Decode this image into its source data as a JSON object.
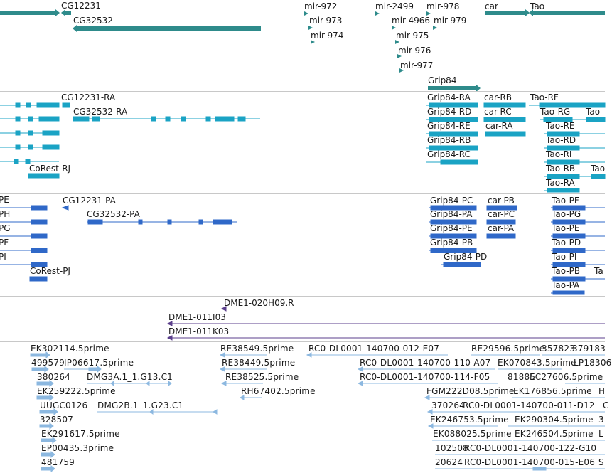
{
  "colors": {
    "gene": "#2e8b8b",
    "transcript": "#1aa3c4",
    "protein": "#2f68c8",
    "cdna": "#5b3f8c",
    "est": "#8cb8e0",
    "divider": "#c8c8c8"
  },
  "tracks": [
    {
      "id": "genes",
      "features": [
        {
          "label": "CG12231",
          "icon": "gene-bar"
        },
        {
          "label": "CG32532",
          "icon": "gene-bar"
        },
        {
          "label": "mir-972",
          "icon": "mirna-marker"
        },
        {
          "label": "mir-973",
          "icon": "mirna-marker"
        },
        {
          "label": "mir-974",
          "icon": "mirna-marker"
        },
        {
          "label": "mir-2499",
          "icon": "mirna-marker"
        },
        {
          "label": "mir-4966",
          "icon": "mirna-marker"
        },
        {
          "label": "mir-975",
          "icon": "mirna-marker"
        },
        {
          "label": "mir-976",
          "icon": "mirna-marker"
        },
        {
          "label": "mir-977",
          "icon": "mirna-marker"
        },
        {
          "label": "mir-978",
          "icon": "mirna-marker"
        },
        {
          "label": "mir-979",
          "icon": "mirna-marker"
        },
        {
          "label": "car",
          "icon": "gene-bar"
        },
        {
          "label": "Tao",
          "icon": "gene-bar"
        },
        {
          "label": "Grip84",
          "icon": "gene-bar"
        }
      ]
    },
    {
      "id": "transcripts",
      "features": [
        {
          "label": "CG12231-RA"
        },
        {
          "label": "CG32532-RA"
        },
        {
          "label": "CoRest-RJ"
        },
        {
          "label": "Grip84-RA"
        },
        {
          "label": "Grip84-RD"
        },
        {
          "label": "Grip84-RE"
        },
        {
          "label": "Grip84-RB"
        },
        {
          "label": "Grip84-RC"
        },
        {
          "label": "car-RB"
        },
        {
          "label": "car-RC"
        },
        {
          "label": "car-RA"
        },
        {
          "label": "Tao-RF"
        },
        {
          "label": "Tao-RG"
        },
        {
          "label": "Tao-"
        },
        {
          "label": "Tao-RE"
        },
        {
          "label": "Tao-RD"
        },
        {
          "label": "Tao-RI"
        },
        {
          "label": "Tao-RB"
        },
        {
          "label": "Tao-RA"
        },
        {
          "label": "Tao"
        }
      ]
    },
    {
      "id": "proteins",
      "features": [
        {
          "label": "PE"
        },
        {
          "label": "PH"
        },
        {
          "label": "PG"
        },
        {
          "label": "PF"
        },
        {
          "label": "PI"
        },
        {
          "label": "CG12231-PA"
        },
        {
          "label": "CG32532-PA"
        },
        {
          "label": "CoRest-PJ"
        },
        {
          "label": "Grip84-PC"
        },
        {
          "label": "Grip84-PA"
        },
        {
          "label": "Grip84-PE"
        },
        {
          "label": "Grip84-PB"
        },
        {
          "label": "Grip84-PD"
        },
        {
          "label": "car-PB"
        },
        {
          "label": "car-PC"
        },
        {
          "label": "car-PA"
        },
        {
          "label": "Tao-PF"
        },
        {
          "label": "Tao-PG"
        },
        {
          "label": "Tao-PE"
        },
        {
          "label": "Tao-PD"
        },
        {
          "label": "Tao-PI"
        },
        {
          "label": "Tao-PB"
        },
        {
          "label": "Tao-PA"
        },
        {
          "label": "Ta"
        }
      ]
    },
    {
      "id": "cdna-clones",
      "features": [
        {
          "label": "DME1-020H09.R"
        },
        {
          "label": "DME1-011I03"
        },
        {
          "label": "DME1-011K03"
        }
      ]
    },
    {
      "id": "est-alignments",
      "features": [
        {
          "label": "EK302114.5prime"
        },
        {
          "label": "499579"
        },
        {
          "label": "IP06617.5prime"
        },
        {
          "label": "380264"
        },
        {
          "label": "DMG3A.1_1.G13.C1"
        },
        {
          "label": "EK259222.5prime"
        },
        {
          "label": "UUGC0126"
        },
        {
          "label": "DMG2B.1_1.G23.C1"
        },
        {
          "label": "328507"
        },
        {
          "label": "EK291617.5prime"
        },
        {
          "label": "EP00435.3prime"
        },
        {
          "label": "481759"
        },
        {
          "label": "RE38549.5prime"
        },
        {
          "label": "RE38449.5prime"
        },
        {
          "label": "RE38525.5prime"
        },
        {
          "label": "RH67402.5prime"
        },
        {
          "label": "RC0-DL0001-140700-012-E07"
        },
        {
          "label": "RC0-DL0001-140700-110-A07"
        },
        {
          "label": "RC0-DL0001-140700-114-F05"
        },
        {
          "label": "RE29596.5prime"
        },
        {
          "label": "357823"
        },
        {
          "label": "379183"
        },
        {
          "label": "EK070843.5prime"
        },
        {
          "label": "81885"
        },
        {
          "label": "LP18306"
        },
        {
          "label": "EC27606.5prime"
        },
        {
          "label": "FGM222D08.5prime"
        },
        {
          "label": "EK176856.5prime"
        },
        {
          "label": "H"
        },
        {
          "label": "370264"
        },
        {
          "label": "RC0-DL0001-140700-011-D12"
        },
        {
          "label": "C"
        },
        {
          "label": "EK246753.5prime"
        },
        {
          "label": "EK290304.5prime"
        },
        {
          "label": "3"
        },
        {
          "label": "EK088025.5prime"
        },
        {
          "label": "EK246504.5prime"
        },
        {
          "label": "L"
        },
        {
          "label": "102508"
        },
        {
          "label": "RC0-DL0001-140700-122-G10"
        },
        {
          "label": "20624"
        },
        {
          "label": "RC0-DL0001-140700-015-E06"
        },
        {
          "label": "S"
        }
      ]
    }
  ]
}
